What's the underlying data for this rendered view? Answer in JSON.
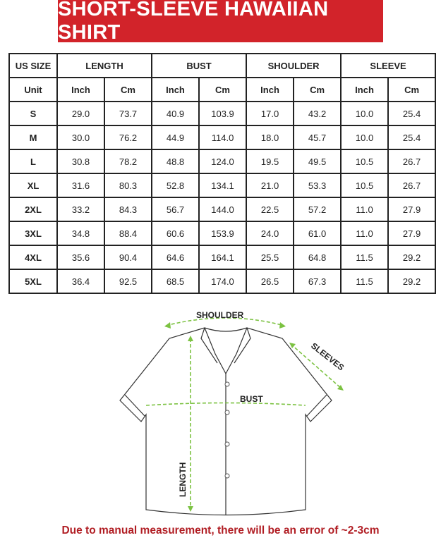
{
  "title": "SHORT-SLEEVE HAWAIIAN SHIRT",
  "table": {
    "headers": [
      "US SIZE",
      "LENGTH",
      "BUST",
      "SHOULDER",
      "SLEEVE"
    ],
    "units": [
      "Unit",
      "Inch",
      "Cm",
      "Inch",
      "Cm",
      "Inch",
      "Cm",
      "Inch",
      "Cm"
    ],
    "rows": [
      [
        "S",
        "29.0",
        "73.7",
        "40.9",
        "103.9",
        "17.0",
        "43.2",
        "10.0",
        "25.4"
      ],
      [
        "M",
        "30.0",
        "76.2",
        "44.9",
        "114.0",
        "18.0",
        "45.7",
        "10.0",
        "25.4"
      ],
      [
        "L",
        "30.8",
        "78.2",
        "48.8",
        "124.0",
        "19.5",
        "49.5",
        "10.5",
        "26.7"
      ],
      [
        "XL",
        "31.6",
        "80.3",
        "52.8",
        "134.1",
        "21.0",
        "53.3",
        "10.5",
        "26.7"
      ],
      [
        "2XL",
        "33.2",
        "84.3",
        "56.7",
        "144.0",
        "22.5",
        "57.2",
        "11.0",
        "27.9"
      ],
      [
        "3XL",
        "34.8",
        "88.4",
        "60.6",
        "153.9",
        "24.0",
        "61.0",
        "11.0",
        "27.9"
      ],
      [
        "4XL",
        "35.6",
        "90.4",
        "64.6",
        "164.1",
        "25.5",
        "64.8",
        "11.5",
        "29.2"
      ],
      [
        "5XL",
        "36.4",
        "92.5",
        "68.5",
        "174.0",
        "26.5",
        "67.3",
        "11.5",
        "29.2"
      ]
    ]
  },
  "diagram": {
    "shoulder": "SHOULDER",
    "sleeves": "SLEEVES",
    "bust": "BUST",
    "length": "LENGTH",
    "arrow_color": "#7cc242"
  },
  "note": "Due to manual measurement, there will be an error of ~2-3cm",
  "colors": {
    "banner": "#d2232a",
    "note": "#b11e24"
  }
}
